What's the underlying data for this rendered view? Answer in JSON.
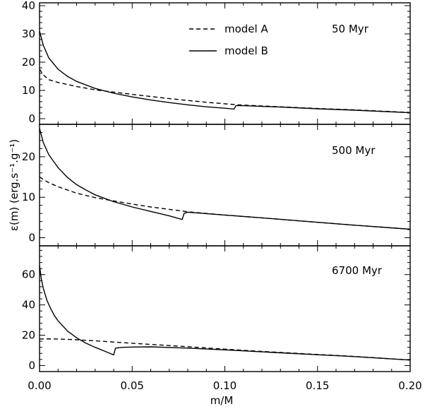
{
  "figure": {
    "ylabel": "ε(m)  (erg.s⁻¹.g⁻¹)",
    "xlabel": "m/M",
    "legend": [
      {
        "label": "model A",
        "style": "dashed"
      },
      {
        "label": "model B",
        "style": "solid"
      }
    ]
  },
  "chart_data": [
    {
      "type": "line",
      "annotation": "50 Myr",
      "xlim": [
        0,
        0.2
      ],
      "ylim": [
        -2,
        41
      ],
      "yticks": [
        0,
        10,
        20,
        30,
        40
      ],
      "series": [
        {
          "name": "model A",
          "style": "dashed",
          "x": [
            0,
            0.002,
            0.005,
            0.01,
            0.02,
            0.03,
            0.05,
            0.07,
            0.09,
            0.105,
            0.11,
            0.13,
            0.15,
            0.17,
            0.2
          ],
          "y": [
            17.5,
            15.5,
            13.8,
            12.8,
            11.4,
            10.2,
            8.6,
            7.1,
            5.8,
            5.0,
            4.8,
            4.2,
            3.6,
            3.1,
            2.2
          ]
        },
        {
          "name": "model B",
          "style": "solid",
          "x": [
            0,
            0.002,
            0.005,
            0.01,
            0.015,
            0.02,
            0.03,
            0.04,
            0.05,
            0.06,
            0.07,
            0.08,
            0.09,
            0.1,
            0.105,
            0.106,
            0.11,
            0.13,
            0.15,
            0.17,
            0.2
          ],
          "y": [
            31,
            26,
            21.5,
            17.5,
            15,
            13.2,
            10.7,
            9.0,
            7.7,
            6.6,
            5.7,
            4.9,
            4.2,
            3.7,
            3.4,
            4.6,
            4.6,
            4.1,
            3.5,
            3.0,
            2.1
          ]
        }
      ]
    },
    {
      "type": "line",
      "annotation": "500 Myr",
      "xlim": [
        0,
        0.2
      ],
      "ylim": [
        -2,
        28
      ],
      "yticks": [
        0,
        10,
        20
      ],
      "series": [
        {
          "name": "model A",
          "style": "dashed",
          "x": [
            0,
            0.002,
            0.005,
            0.01,
            0.02,
            0.03,
            0.04,
            0.05,
            0.06,
            0.07,
            0.08,
            0.1,
            0.12,
            0.15,
            0.17,
            0.2
          ],
          "y": [
            15,
            14.4,
            13.6,
            12.6,
            11.0,
            9.9,
            9.1,
            8.3,
            7.6,
            7.0,
            6.4,
            5.6,
            4.9,
            3.8,
            3.1,
            2.1
          ]
        },
        {
          "name": "model B",
          "style": "solid",
          "x": [
            0,
            0.002,
            0.005,
            0.01,
            0.015,
            0.02,
            0.025,
            0.03,
            0.04,
            0.05,
            0.06,
            0.07,
            0.077,
            0.078,
            0.08,
            0.1,
            0.12,
            0.15,
            0.17,
            0.2
          ],
          "y": [
            27,
            23.5,
            20.5,
            17.3,
            14.9,
            13.1,
            11.8,
            10.6,
            8.9,
            7.6,
            6.5,
            5.4,
            4.5,
            6.0,
            6.3,
            5.6,
            4.9,
            3.8,
            3.1,
            2.1
          ]
        }
      ]
    },
    {
      "type": "line",
      "annotation": "6700 Myr",
      "xlim": [
        0,
        0.2
      ],
      "ylim": [
        -4,
        79
      ],
      "yticks": [
        0,
        20,
        40,
        60
      ],
      "series": [
        {
          "name": "model A",
          "style": "dashed",
          "x": [
            0,
            0.005,
            0.01,
            0.02,
            0.03,
            0.04,
            0.05,
            0.06,
            0.08,
            0.1,
            0.12,
            0.15,
            0.17,
            0.2
          ],
          "y": [
            17.5,
            17.6,
            17.5,
            17.0,
            16.3,
            15.5,
            14.7,
            13.9,
            12.4,
            10.8,
            9.3,
            7.3,
            6.0,
            3.6
          ]
        },
        {
          "name": "model B",
          "style": "solid",
          "x": [
            0,
            0.001,
            0.002,
            0.004,
            0.006,
            0.008,
            0.01,
            0.015,
            0.02,
            0.025,
            0.03,
            0.035,
            0.04,
            0.041,
            0.045,
            0.05,
            0.06,
            0.08,
            0.1,
            0.12,
            0.15,
            0.17,
            0.2
          ],
          "y": [
            66,
            57,
            51,
            43,
            37.5,
            33,
            29.5,
            22.8,
            18.3,
            14.8,
            12.0,
            9.5,
            7.0,
            11.5,
            12.0,
            12.2,
            12.3,
            11.5,
            10.3,
            9.0,
            7.1,
            5.9,
            3.6
          ]
        }
      ]
    }
  ]
}
